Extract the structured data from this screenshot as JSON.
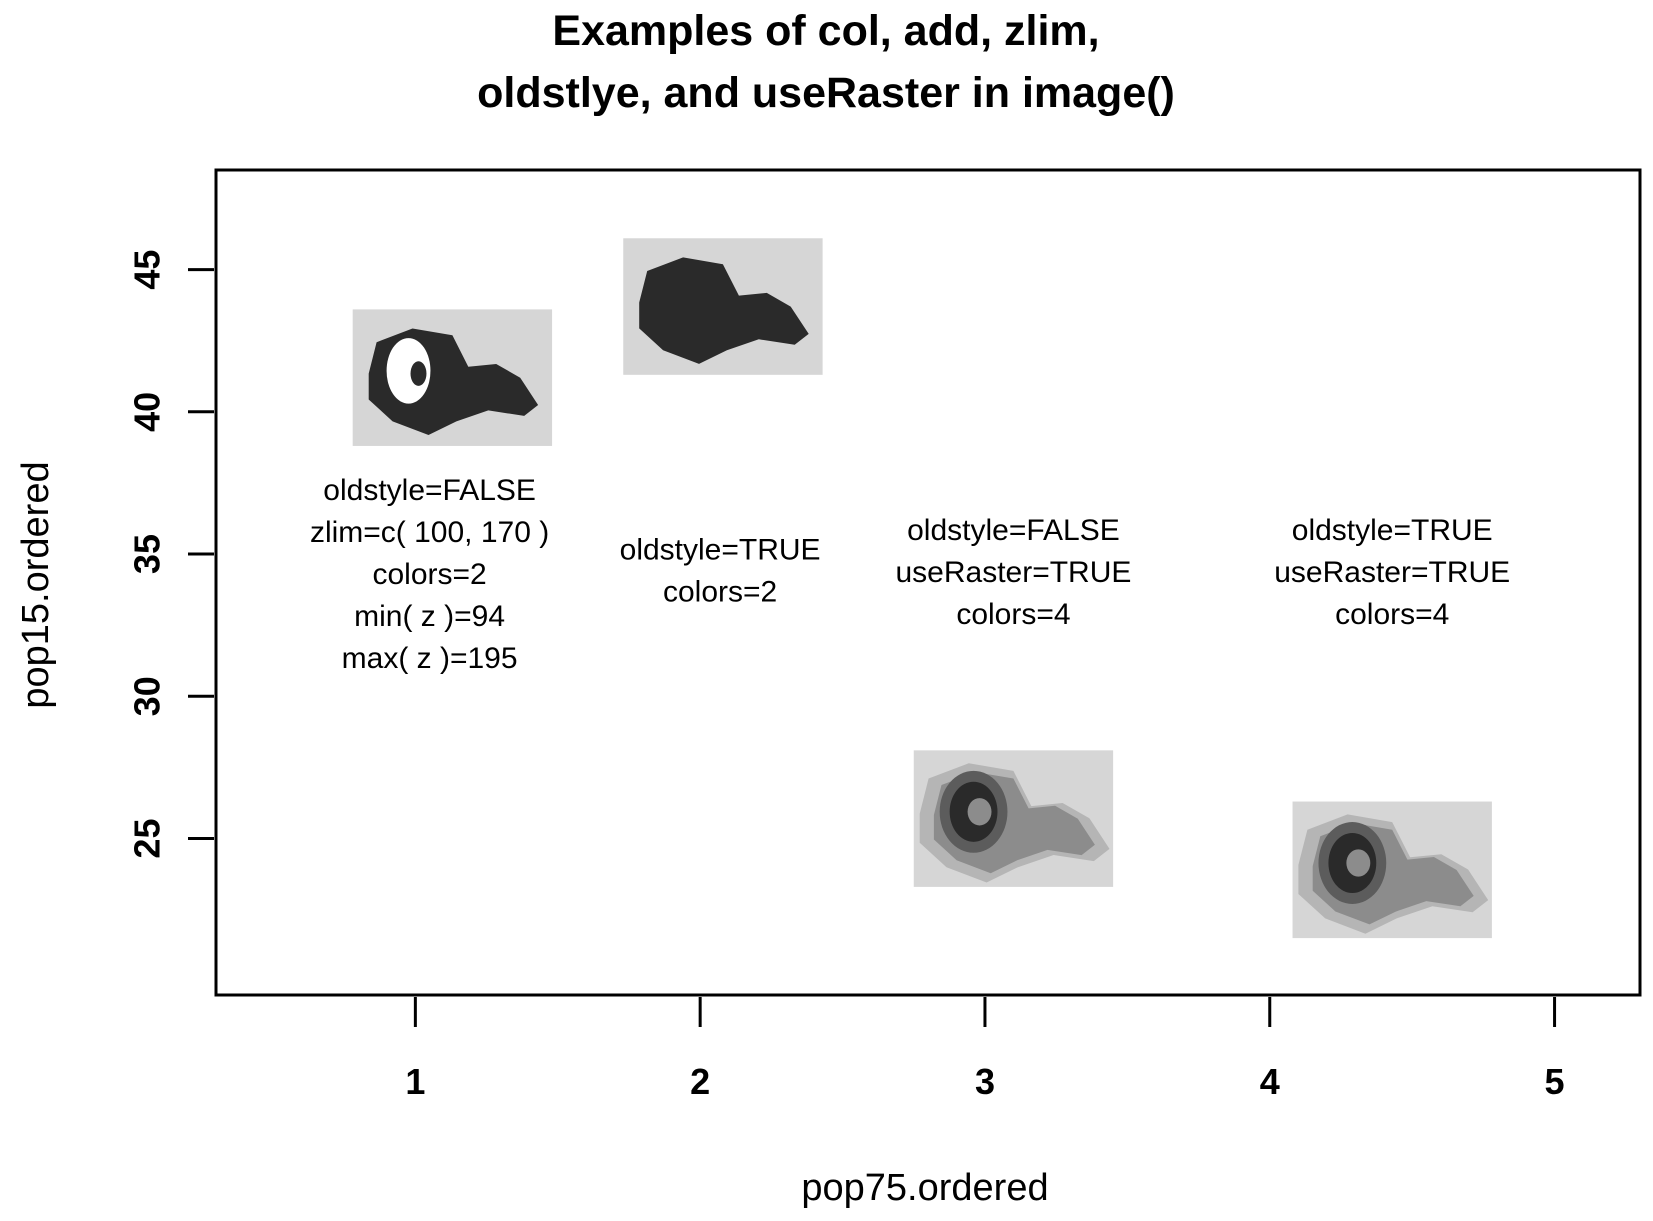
{
  "chart_data": {
    "type": "scatter",
    "title": [
      "Examples of col, add, zlim,",
      "oldstlye, and useRaster in image()"
    ],
    "xlabel": "pop75.ordered",
    "ylabel": "pop15.ordered",
    "xlim": [
      0.3,
      5.3
    ],
    "ylim": [
      19.5,
      48.5
    ],
    "x_ticks": [
      1,
      2,
      3,
      4,
      5
    ],
    "y_ticks": [
      25,
      30,
      35,
      40,
      45
    ],
    "grid": false,
    "legend": "none",
    "colors": {
      "frame": "#000000",
      "image_background": "#d6d6d6",
      "level_1": "#2a2a2a",
      "level_2": "#5c5c5c",
      "level_3": "#8c8c8c",
      "level_4": "#b5b5b5",
      "hole": "#ffffff"
    },
    "images": [
      {
        "id": "oldstyle-false-zlim",
        "x": [
          0.78,
          1.48
        ],
        "y": [
          38.8,
          43.6
        ],
        "colors": 2,
        "style": "binary-hole"
      },
      {
        "id": "oldstyle-true",
        "x": [
          1.73,
          2.43
        ],
        "y": [
          41.3,
          46.1
        ],
        "colors": 2,
        "style": "binary-solid"
      },
      {
        "id": "oldstyle-false-raster",
        "x": [
          2.75,
          3.45
        ],
        "y": [
          23.3,
          28.1
        ],
        "colors": 4,
        "style": "contour"
      },
      {
        "id": "oldstyle-true-raster",
        "x": [
          4.08,
          4.78
        ],
        "y": [
          21.5,
          26.3
        ],
        "colors": 4,
        "style": "contour"
      }
    ],
    "annotations": [
      {
        "x": 1.05,
        "y_top": 36.9,
        "lines": [
          "oldstyle=FALSE",
          "zlim=c( 100, 170 )",
          "colors=2",
          "min( z )=94",
          "max( z )=195"
        ]
      },
      {
        "x": 2.07,
        "y_top": 34.8,
        "lines": [
          "oldstyle=TRUE",
          "colors=2"
        ]
      },
      {
        "x": 3.1,
        "y_top": 35.5,
        "lines": [
          "oldstyle=FALSE",
          "useRaster=TRUE",
          "colors=4"
        ]
      },
      {
        "x": 4.43,
        "y_top": 35.5,
        "lines": [
          "oldstyle=TRUE",
          "useRaster=TRUE",
          "colors=4"
        ]
      }
    ]
  }
}
